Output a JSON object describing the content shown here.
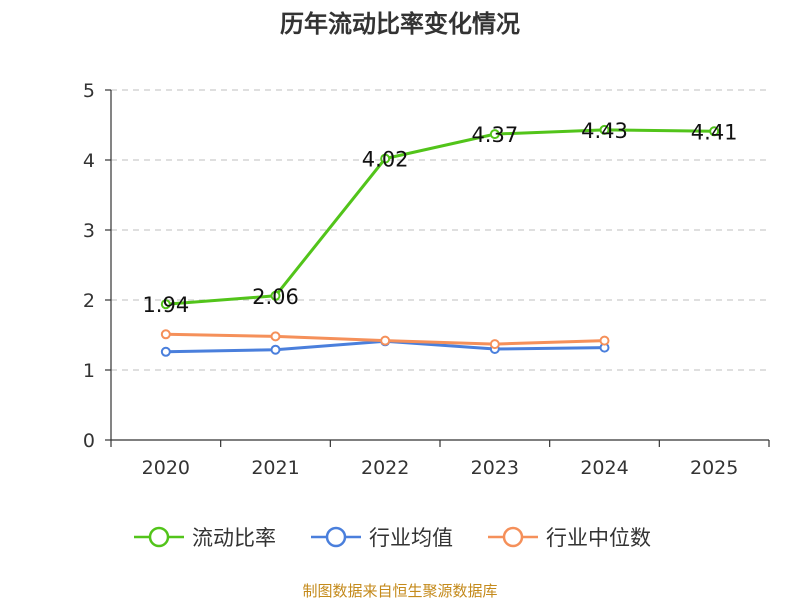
{
  "chart_data": {
    "type": "line",
    "title": "历年流动比率变化情况",
    "categories": [
      "2020",
      "2021",
      "2022",
      "2023",
      "2024",
      "2025"
    ],
    "ylim": [
      0,
      5
    ],
    "yticks": [
      "0",
      "1",
      "2",
      "3",
      "4",
      "5"
    ],
    "grid": true,
    "legend_position": "bottom",
    "series": [
      {
        "name": "流动比率",
        "color": "#52c41a",
        "values": [
          1.94,
          2.06,
          4.02,
          4.37,
          4.43,
          4.41
        ],
        "labels": [
          "1.94",
          "2.06",
          "4.02",
          "4.37",
          "4.43",
          "4.41"
        ]
      },
      {
        "name": "行业均值",
        "color": "#4a7fdc",
        "values": [
          1.26,
          1.29,
          1.41,
          1.3,
          1.32,
          null
        ]
      },
      {
        "name": "行业中位数",
        "color": "#f5905a",
        "values": [
          1.51,
          1.48,
          1.42,
          1.37,
          1.42,
          null
        ]
      }
    ],
    "source": "制图数据来自恒生聚源数据库"
  }
}
